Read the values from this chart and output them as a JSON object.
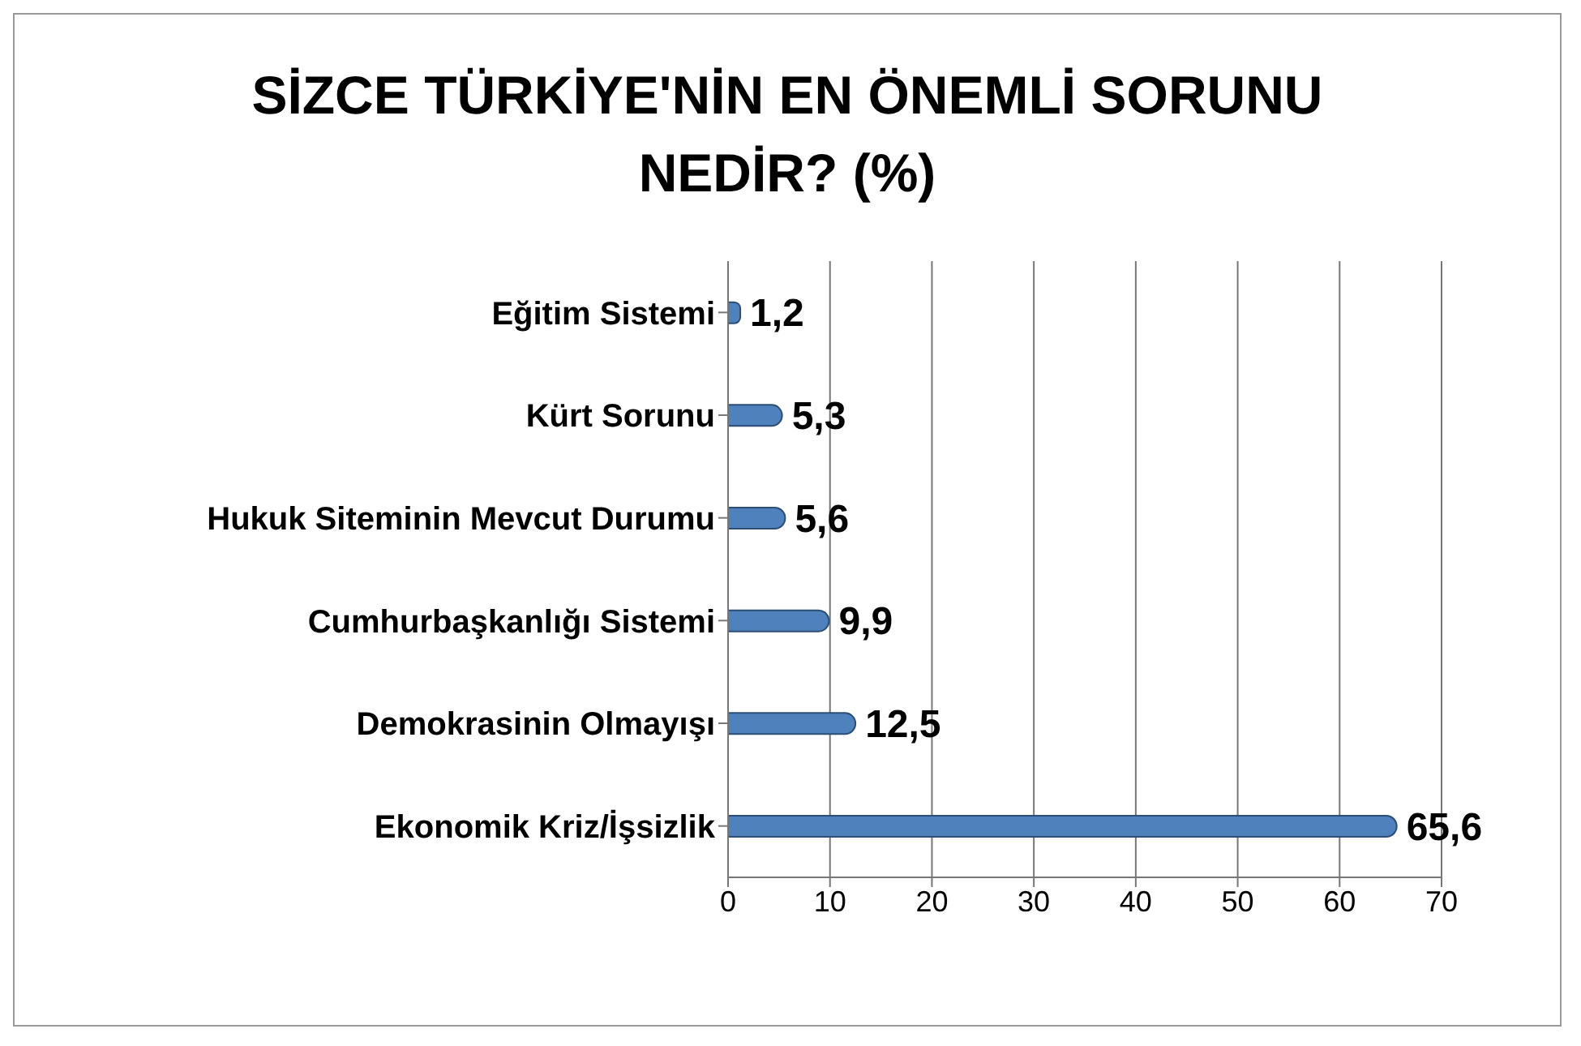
{
  "chart_data": {
    "type": "bar",
    "orientation": "horizontal",
    "title": "SİZCE TÜRKİYE'NİN EN ÖNEMLİ SORUNU NEDİR? (%)",
    "categories": [
      "Eğitim Sistemi",
      "Kürt Sorunu",
      "Hukuk Siteminin Mevcut Durumu",
      "Cumhurbaşkanlığı Sistemi",
      "Demokrasinin Olmayışı",
      "Ekonomik Kriz/İşsizlik"
    ],
    "values": [
      1.2,
      5.3,
      5.6,
      9.9,
      12.5,
      65.6
    ],
    "value_labels": [
      "1,2",
      "5,3",
      "5,6",
      "9,9",
      "12,5",
      "65,6"
    ],
    "color": "#4f81bd",
    "xlim": [
      0,
      70
    ],
    "xticks": [
      0,
      10,
      20,
      30,
      40,
      50,
      60,
      70
    ],
    "grid": "x"
  }
}
